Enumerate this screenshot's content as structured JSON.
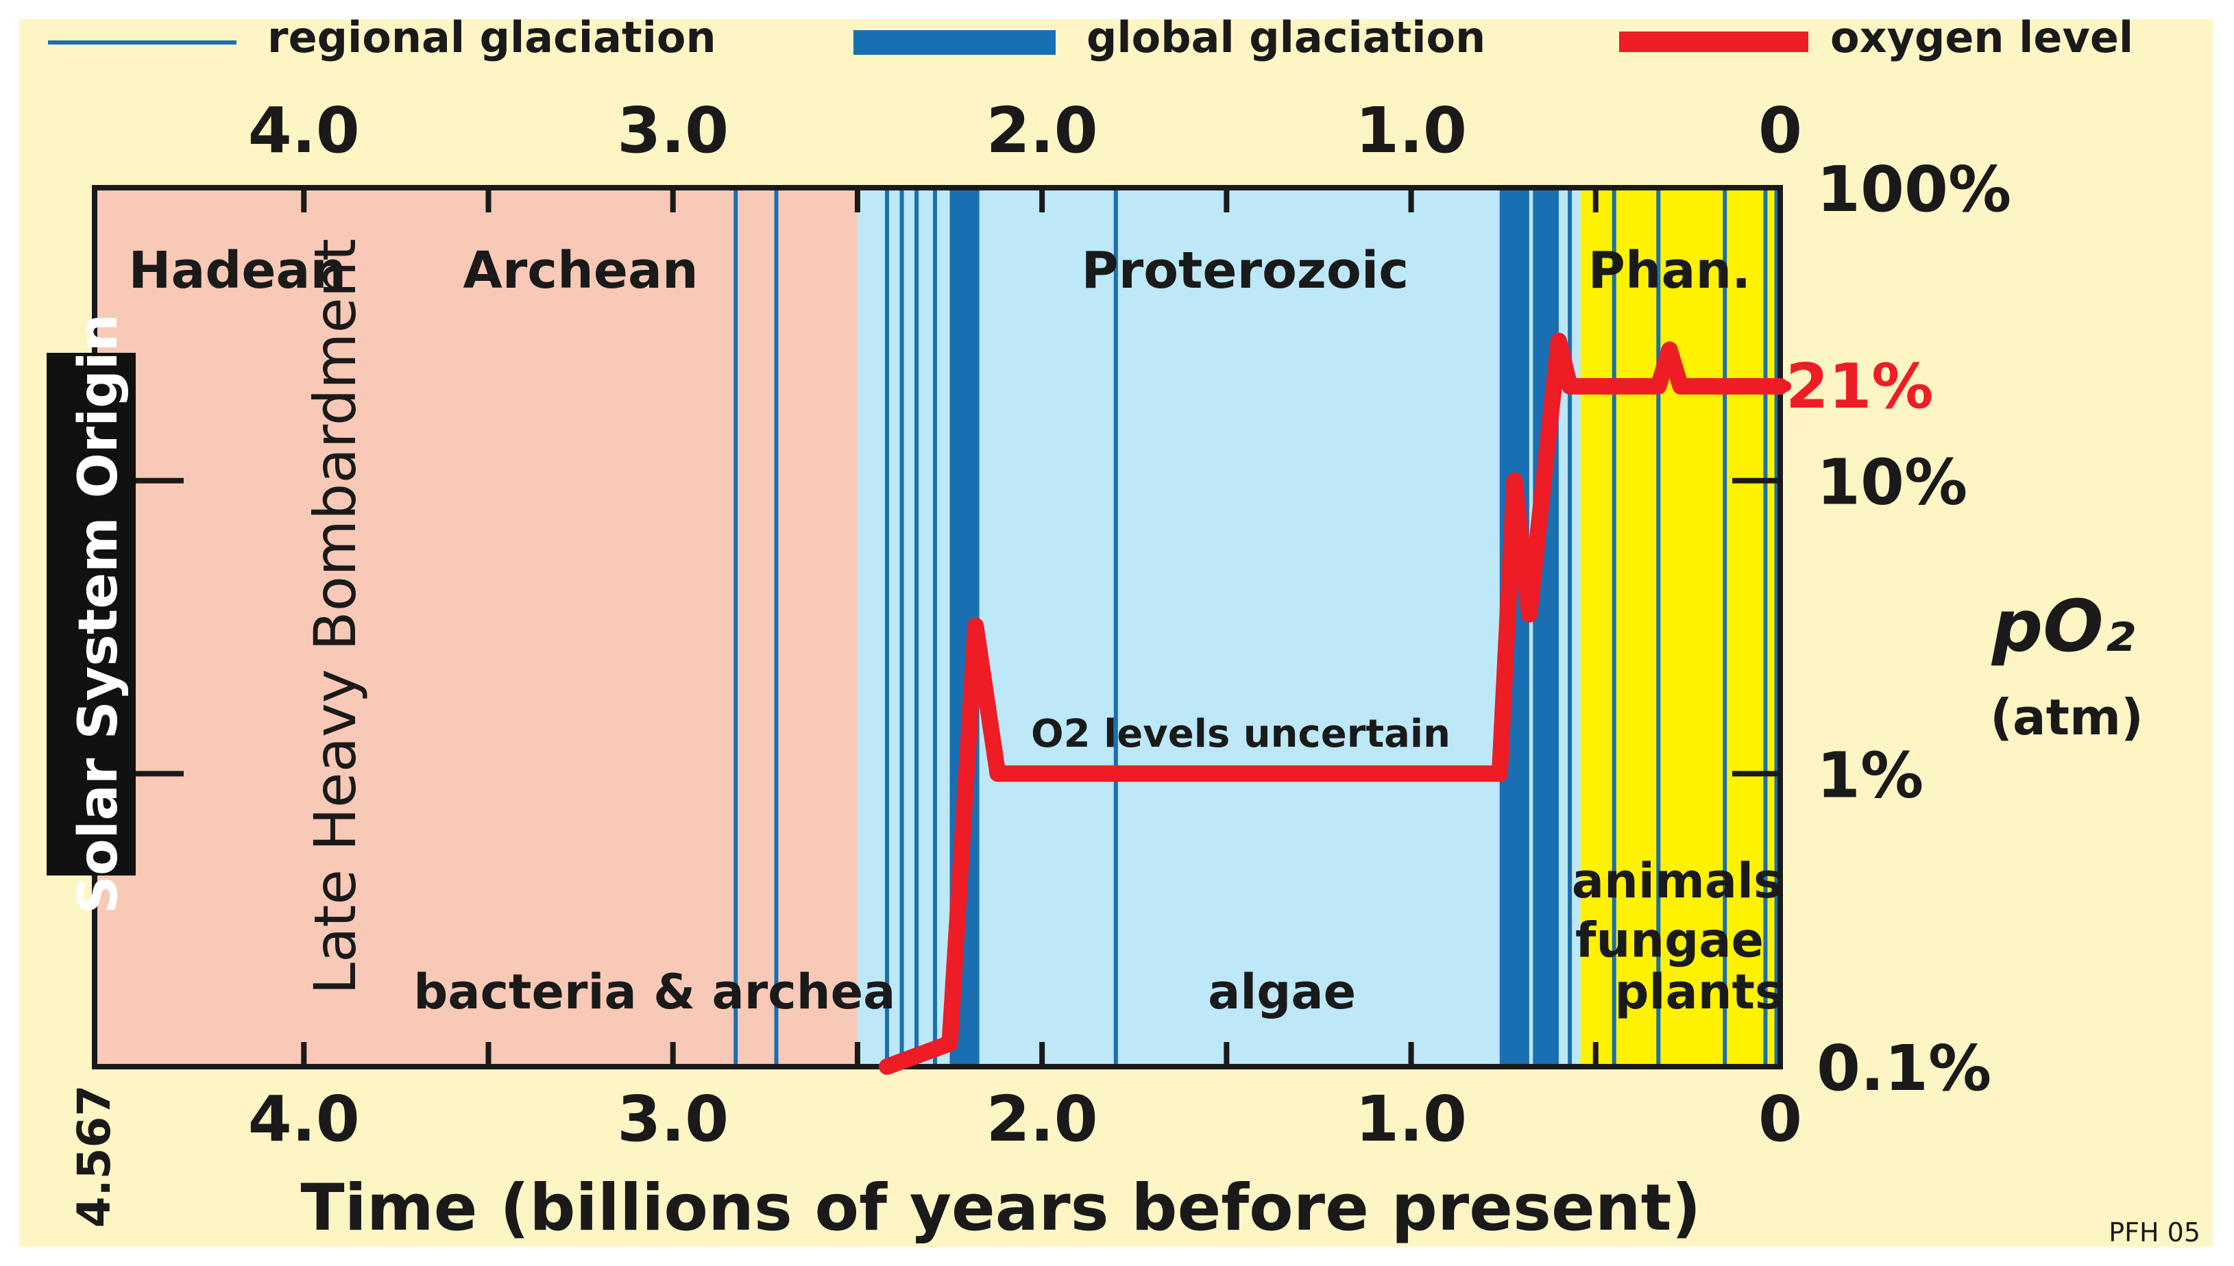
{
  "chart_data": {
    "type": "line",
    "title": "",
    "xlabel": "Time (billions of years before present)",
    "ylabel": "pO₂",
    "ylabel_unit": "(atm)",
    "x_reversed": true,
    "xlim": [
      4.567,
      0
    ],
    "ylim_percent": [
      0.1,
      100
    ],
    "y_scale": "log",
    "x_ticks": [
      "4.0",
      "3.0",
      "2.0",
      "1.0",
      "0"
    ],
    "x_tick_values": [
      4.0,
      3.0,
      2.0,
      1.0,
      0
    ],
    "x_minor_tick_values": [
      3.5,
      2.5,
      1.5,
      0.5
    ],
    "x_origin_label": "4.567",
    "y_ticks": [
      "0.1%",
      "1%",
      "10%",
      "100%"
    ],
    "y_tick_values": [
      0.1,
      1,
      10,
      100
    ],
    "legend": {
      "placement": "top",
      "items": [
        {
          "key": "regional",
          "label": "regional glaciation",
          "color": "#1a6fb3"
        },
        {
          "key": "global",
          "label": "global glaciation",
          "color": "#1a6fb3"
        },
        {
          "key": "oxygen",
          "label": "oxygen level",
          "color": "#ee1c25"
        }
      ]
    },
    "eons": [
      {
        "label": "Hadean",
        "start": 4.567,
        "end": 4.0,
        "color": "#f8c9b6"
      },
      {
        "label": "Archean",
        "start": 4.0,
        "end": 2.5,
        "color": "#f8c9b6"
      },
      {
        "label": "Proterozoic",
        "start": 2.5,
        "end": 0.541,
        "color": "#bde8f8"
      },
      {
        "label": "Phan.",
        "start": 0.541,
        "end": 0,
        "color": "#fff200"
      }
    ],
    "life_labels": [
      {
        "text": "bacteria & archea",
        "x": 3.05,
        "y": 0.18
      },
      {
        "text": "algae",
        "x": 1.35,
        "y": 0.18
      },
      {
        "text": "animals",
        "x": 0.28,
        "y": 0.43
      },
      {
        "text": "fungae",
        "x": 0.3,
        "y": 0.27
      },
      {
        "text": "plants",
        "x": 0.22,
        "y": 0.18
      }
    ],
    "annotations": [
      {
        "text": "Solar System Origin",
        "x": 4.567
      },
      {
        "text": "Late Heavy Bombardment",
        "x": 3.9
      },
      {
        "text": "O2 levels uncertain",
        "x": 1.45,
        "y": 1.25
      },
      {
        "text": "21%",
        "y": 21
      }
    ],
    "credit": "PFH 05",
    "global_glaciations": [
      {
        "start": 2.25,
        "end": 2.17
      },
      {
        "start": 0.76,
        "end": 0.68
      },
      {
        "start": 0.67,
        "end": 0.6
      }
    ],
    "regional_glaciations": [
      2.83,
      2.72,
      2.42,
      2.38,
      2.34,
      2.29,
      1.8,
      0.57,
      0.45,
      0.33,
      0.15,
      0.04,
      0.01
    ],
    "series": [
      {
        "name": "oxygen level",
        "color": "#ee1c25",
        "x": [
          2.42,
          2.25,
          2.18,
          2.12,
          0.76,
          0.72,
          0.68,
          0.6,
          0.57,
          0.33,
          0.3,
          0.27,
          0
        ],
        "y": [
          0.1,
          0.12,
          3.2,
          1.0,
          1.0,
          10,
          3.5,
          30,
          21,
          21,
          28,
          21,
          21
        ]
      }
    ]
  }
}
